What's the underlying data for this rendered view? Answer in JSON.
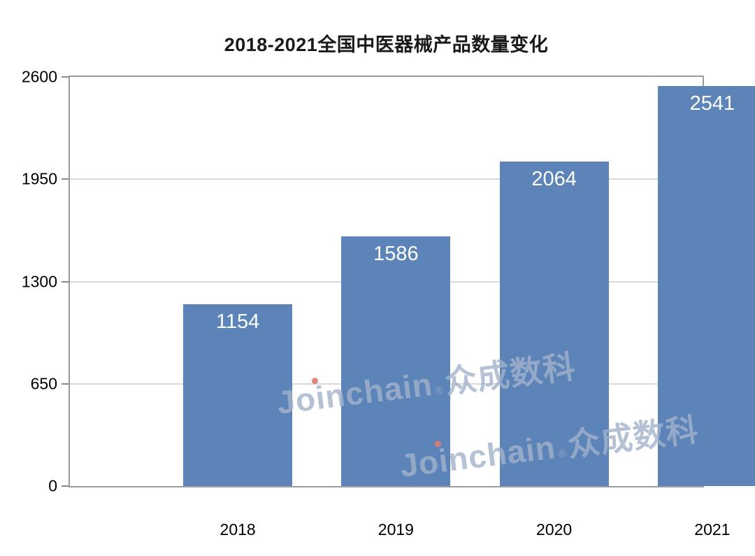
{
  "chart_data": {
    "type": "bar",
    "title": "2018-2021全国中医器械产品数量变化",
    "categories": [
      "2018",
      "2019",
      "2020",
      "2021"
    ],
    "values": [
      1154,
      1586,
      2064,
      2541
    ],
    "ylim": [
      0,
      2600
    ],
    "yticks": [
      0,
      650,
      1300,
      1950,
      2600
    ],
    "grid": true,
    "legend_position": "none",
    "xlabel": "",
    "ylabel": "",
    "bar_color": "#5c84b8",
    "bar_label_color": "#ffffff",
    "plot_border_color": "#9c9c9c",
    "gridline_color": "#d9d9d9",
    "watermark": {
      "latin": "Joinchain",
      "reg": "®",
      "cn": "众成数科",
      "color": "#a3b2cb",
      "accent_dot_color": "#e07a6e"
    }
  }
}
